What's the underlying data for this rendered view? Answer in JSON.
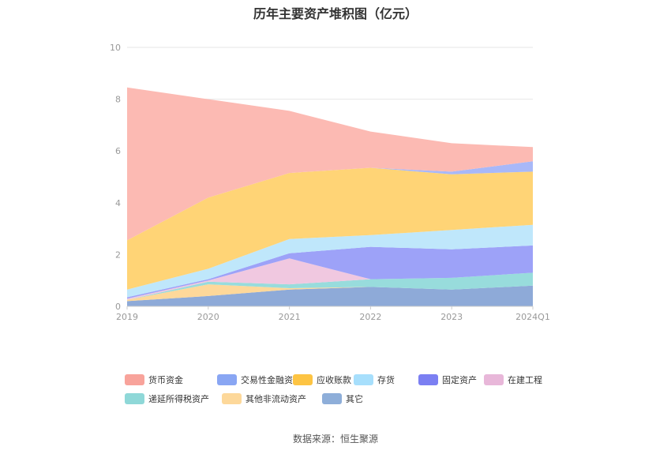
{
  "chart_data": {
    "type": "area",
    "stacked": true,
    "title": "历年主要资产堆积图（亿元）",
    "categories": [
      "2019",
      "2020",
      "2021",
      "2022",
      "2023",
      "2024Q1"
    ],
    "ylim": [
      0,
      10
    ],
    "yticks": [
      0,
      2,
      4,
      6,
      8,
      10
    ],
    "grid": true,
    "legend_position": "bottom",
    "series": [
      {
        "name": "其它",
        "color": "#8eaad8",
        "values": [
          0.2,
          0.4,
          0.65,
          0.75,
          0.65,
          0.8
        ]
      },
      {
        "name": "其他非流动资产",
        "color": "#fed89a",
        "values": [
          0.05,
          0.45,
          0.05,
          0.0,
          0.0,
          0.0
        ]
      },
      {
        "name": "递延所得税资产",
        "color": "#98dcdc",
        "values": [
          0.0,
          0.1,
          0.15,
          0.3,
          0.45,
          0.5
        ]
      },
      {
        "name": "在建工程",
        "color": "#f0c8e0",
        "values": [
          0.05,
          0.05,
          1.0,
          0.0,
          0.0,
          0.0
        ]
      },
      {
        "name": "固定资产",
        "color": "#9da2f8",
        "values": [
          0.05,
          0.05,
          0.2,
          1.25,
          1.1,
          1.05
        ]
      },
      {
        "name": "存货",
        "color": "#bfe7fb",
        "values": [
          0.3,
          0.4,
          0.55,
          0.45,
          0.75,
          0.8
        ]
      },
      {
        "name": "应收账款",
        "color": "#ffd476",
        "values": [
          1.9,
          2.75,
          2.55,
          2.6,
          2.15,
          2.05
        ]
      },
      {
        "name": "交易性金融资产",
        "color": "#a8b8f8",
        "values": [
          0.0,
          0.0,
          0.0,
          0.0,
          0.1,
          0.4
        ]
      },
      {
        "name": "货币资金",
        "color": "#fcbab3",
        "values": [
          5.9,
          3.8,
          2.4,
          1.4,
          1.1,
          0.55
        ]
      }
    ]
  },
  "legend": {
    "items": [
      {
        "name": "货币资金",
        "color": "#f8a39b"
      },
      {
        "name": "交易性金融资产",
        "color": "#89a6f3"
      },
      {
        "name": "应收账款",
        "color": "#fdc443"
      },
      {
        "name": "存货",
        "color": "#a7dffc"
      },
      {
        "name": "固定资产",
        "color": "#7b7ff2"
      },
      {
        "name": "在建工程",
        "color": "#e8b7d9"
      },
      {
        "name": "递延所得税资产",
        "color": "#8fd8d8"
      },
      {
        "name": "其他非流动资产",
        "color": "#fdd89a"
      },
      {
        "name": "其它",
        "color": "#8eaed9"
      }
    ]
  },
  "source": "数据来源：恒生聚源"
}
